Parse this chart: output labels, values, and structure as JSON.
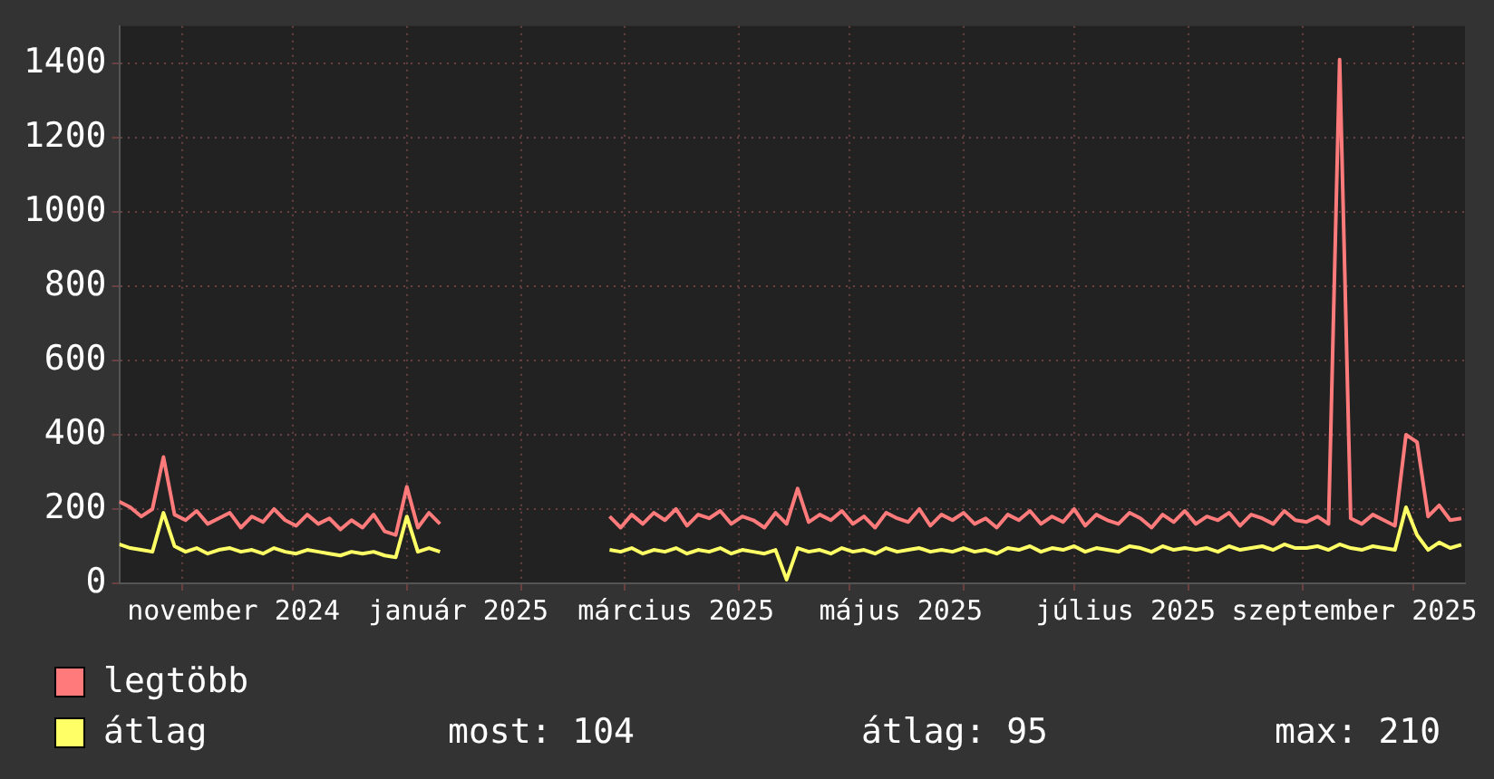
{
  "chart_data": {
    "type": "line",
    "legend": "bottom left",
    "grid": true,
    "marker": "none",
    "line_style": "solid",
    "x": [
      "2024-10-15",
      "2024-10-18",
      "2024-10-21",
      "2024-10-24",
      "2024-10-27",
      "2024-10-30",
      "2024-11-02",
      "2024-11-05",
      "2024-11-08",
      "2024-11-11",
      "2024-11-14",
      "2024-11-17",
      "2024-11-20",
      "2024-11-23",
      "2024-11-26",
      "2024-11-29",
      "2024-12-02",
      "2024-12-05",
      "2024-12-08",
      "2024-12-11",
      "2024-12-14",
      "2024-12-17",
      "2024-12-20",
      "2024-12-23",
      "2024-12-26",
      "2024-12-29",
      "2025-01-01",
      "2025-01-04",
      "2025-01-07",
      "2025-01-10",
      "2025-02-01",
      "2025-02-25",
      "2025-02-28",
      "2025-03-03",
      "2025-03-06",
      "2025-03-09",
      "2025-03-12",
      "2025-03-15",
      "2025-03-18",
      "2025-03-21",
      "2025-03-24",
      "2025-03-27",
      "2025-03-30",
      "2025-04-02",
      "2025-04-05",
      "2025-04-08",
      "2025-04-11",
      "2025-04-14",
      "2025-04-17",
      "2025-04-20",
      "2025-04-23",
      "2025-04-26",
      "2025-04-29",
      "2025-05-02",
      "2025-05-05",
      "2025-05-08",
      "2025-05-11",
      "2025-05-14",
      "2025-05-17",
      "2025-05-20",
      "2025-05-23",
      "2025-05-26",
      "2025-05-29",
      "2025-06-01",
      "2025-06-04",
      "2025-06-07",
      "2025-06-10",
      "2025-06-13",
      "2025-06-16",
      "2025-06-19",
      "2025-06-22",
      "2025-06-25",
      "2025-06-28",
      "2025-07-01",
      "2025-07-04",
      "2025-07-07",
      "2025-07-10",
      "2025-07-13",
      "2025-07-16",
      "2025-07-19",
      "2025-07-22",
      "2025-07-25",
      "2025-07-28",
      "2025-07-31",
      "2025-08-03",
      "2025-08-06",
      "2025-08-09",
      "2025-08-12",
      "2025-08-15",
      "2025-08-18",
      "2025-08-21",
      "2025-08-24",
      "2025-08-27",
      "2025-08-30",
      "2025-09-02",
      "2025-09-05",
      "2025-09-08",
      "2025-09-11",
      "2025-09-14",
      "2025-09-17",
      "2025-09-20",
      "2025-09-23",
      "2025-09-26",
      "2025-09-29",
      "2025-10-02",
      "2025-10-05",
      "2025-10-08",
      "2025-10-11",
      "2025-10-14"
    ],
    "series": [
      {
        "name": "legtöbb",
        "color": "#ff7b7b",
        "values": [
          220,
          205,
          180,
          200,
          340,
          185,
          170,
          195,
          160,
          175,
          190,
          150,
          180,
          165,
          200,
          170,
          155,
          185,
          160,
          175,
          145,
          170,
          150,
          185,
          140,
          130,
          260,
          150,
          190,
          160,
          null,
          180,
          150,
          185,
          160,
          190,
          170,
          200,
          155,
          185,
          175,
          195,
          160,
          180,
          170,
          150,
          190,
          160,
          255,
          165,
          185,
          170,
          195,
          160,
          180,
          150,
          190,
          175,
          165,
          200,
          155,
          185,
          170,
          190,
          160,
          175,
          150,
          185,
          170,
          195,
          160,
          180,
          165,
          200,
          155,
          185,
          170,
          160,
          190,
          175,
          150,
          185,
          165,
          195,
          160,
          180,
          170,
          190,
          155,
          185,
          175,
          160,
          195,
          170,
          165,
          180,
          160,
          1410,
          175,
          160,
          185,
          170,
          155,
          400,
          380,
          180,
          210,
          170,
          175
        ]
      },
      {
        "name": "átlag",
        "color": "#ffff66",
        "values": [
          105,
          95,
          90,
          85,
          190,
          100,
          85,
          95,
          80,
          90,
          95,
          85,
          90,
          80,
          95,
          85,
          80,
          90,
          85,
          80,
          75,
          85,
          80,
          85,
          75,
          70,
          180,
          85,
          95,
          85,
          null,
          90,
          85,
          95,
          80,
          90,
          85,
          95,
          80,
          90,
          85,
          95,
          80,
          90,
          85,
          80,
          90,
          10,
          95,
          85,
          90,
          80,
          95,
          85,
          90,
          80,
          95,
          85,
          90,
          95,
          85,
          90,
          85,
          95,
          85,
          90,
          80,
          95,
          90,
          100,
          85,
          95,
          90,
          100,
          85,
          95,
          90,
          85,
          100,
          95,
          85,
          100,
          90,
          95,
          90,
          95,
          85,
          100,
          90,
          95,
          100,
          90,
          105,
          95,
          95,
          100,
          90,
          105,
          95,
          90,
          100,
          95,
          90,
          205,
          130,
          90,
          110,
          95,
          104
        ]
      }
    ],
    "xlim": [
      "2024-10-15",
      "2025-10-15"
    ],
    "xticks": [
      {
        "value": "2024-11-01",
        "label": null
      },
      {
        "value": "2024-11-15",
        "label": "november 2024"
      },
      {
        "value": "2024-12-01",
        "label": null
      },
      {
        "value": "2025-01-01",
        "label": null
      },
      {
        "value": "2025-01-15",
        "label": "január 2025"
      },
      {
        "value": "2025-02-01",
        "label": null
      },
      {
        "value": "2025-03-01",
        "label": null
      },
      {
        "value": "2025-03-15",
        "label": "március 2025"
      },
      {
        "value": "2025-04-01",
        "label": null
      },
      {
        "value": "2025-05-01",
        "label": null
      },
      {
        "value": "2025-05-15",
        "label": "május 2025"
      },
      {
        "value": "2025-06-01",
        "label": null
      },
      {
        "value": "2025-07-01",
        "label": null
      },
      {
        "value": "2025-07-15",
        "label": "július 2025"
      },
      {
        "value": "2025-08-01",
        "label": null
      },
      {
        "value": "2025-09-01",
        "label": null
      },
      {
        "value": "2025-09-15",
        "label": "szeptember 2025"
      },
      {
        "value": "2025-10-01",
        "label": null
      }
    ],
    "ylim": [
      0,
      1500
    ],
    "yticks": [
      0,
      200,
      400,
      600,
      800,
      1000,
      1200,
      1400
    ],
    "annotations": [
      "most: 104",
      "átlag: 95",
      "max: 210"
    ]
  }
}
